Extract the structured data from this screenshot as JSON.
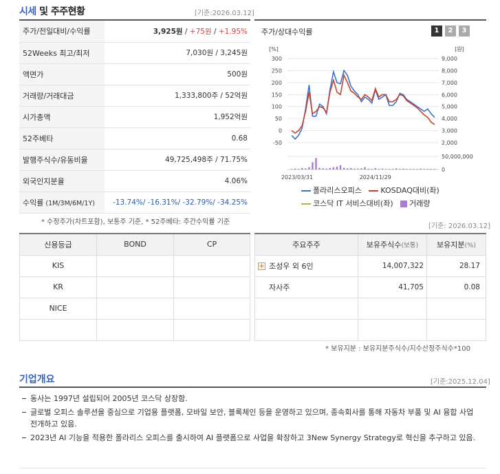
{
  "header": {
    "title_part1": "시세",
    "title_part2": " 및 주주현황",
    "date": "[기준:2026.03.12]"
  },
  "info": {
    "rows": [
      {
        "label": "주가/전일대비/수익률"
      },
      {
        "label": "52Weeks 최고/최저",
        "value": "7,030원 / 3,245원"
      },
      {
        "label": "액면가",
        "value": "500원"
      },
      {
        "label": "거래량/거래대금",
        "value": "1,333,800주 / 52억원"
      },
      {
        "label": "시가총액",
        "value": "1,952억원"
      },
      {
        "label": "52주베타",
        "value": "0.68"
      },
      {
        "label": "발행주식수/유동비율",
        "value": "49,725,498주 / 71.75%"
      },
      {
        "label": "외국인지분율",
        "value": "4.06%"
      },
      {
        "label": "수익률",
        "label_sub": "(1M/3M/6M/1Y)",
        "value": "-13.74%/ -16.31%/ -32.79%/ -34.25%"
      }
    ],
    "price": "3,925원",
    "sep": " / ",
    "change": "+75원",
    "change_pct": "+1.95%"
  },
  "note_adjusted": "* 수정주가(차트포함), 보통주 기준, * 52주베타: 주간수익률 기준",
  "chart": {
    "title": "주가/상대수익률",
    "pages": [
      "1",
      "2",
      "3"
    ],
    "left_unit": "[%]",
    "right_unit": "[원]",
    "left_ticks": [
      "300",
      "250",
      "200",
      "150",
      "100",
      "50",
      "0",
      "-50"
    ],
    "right_ticks": [
      "9,000",
      "8,000",
      "7,000",
      "6,000",
      "5,000",
      "4,000",
      "3,000",
      "2,000"
    ],
    "vol_ticks": [
      "50,000,000",
      "0"
    ],
    "x_ticks": [
      "2023/03/31",
      "2024/11/29"
    ],
    "legend": {
      "s1": "폴라리스오피스",
      "s2": "KOSDAQ대비(좌)",
      "s3": "코스닥 IT 서비스대비(좌)",
      "s4": "거래량"
    },
    "colors": {
      "s1": "#3b73c9",
      "s2": "#c8412b",
      "s3": "#9dbd3a",
      "s4": "#a77bd6"
    }
  },
  "chart_data": {
    "type": "line",
    "x_labels": [
      "2023/03/31",
      "2024/11/29"
    ],
    "left_axis_range": [
      -50,
      300
    ],
    "right_axis_range": [
      2000,
      9000
    ],
    "series": [
      {
        "name": "폴라리스오피스",
        "values": [
          -20,
          -35,
          -20,
          10,
          90,
          190,
          60,
          60,
          110,
          100,
          70,
          170,
          245,
          200,
          195,
          250,
          230,
          185,
          165,
          150,
          120,
          140,
          130,
          115,
          170,
          130,
          140,
          150,
          105,
          105,
          120,
          155,
          150,
          130,
          120,
          110,
          100,
          90,
          80,
          90,
          70,
          55
        ]
      },
      {
        "name": "KOSDAQ대비(좌)",
        "values": [
          0,
          -10,
          0,
          20,
          80,
          160,
          70,
          80,
          100,
          95,
          75,
          160,
          210,
          160,
          150,
          230,
          200,
          165,
          155,
          140,
          130,
          150,
          140,
          125,
          175,
          140,
          150,
          150,
          120,
          120,
          130,
          150,
          145,
          125,
          115,
          105,
          95,
          80,
          65,
          55,
          35,
          25
        ]
      }
    ],
    "volume_range": [
      0,
      50000000
    ],
    "volume": [
      2,
      3,
      2,
      5,
      4,
      8,
      25,
      40,
      6,
      4,
      3,
      5,
      8,
      10,
      15,
      6,
      4,
      5,
      3,
      3,
      4,
      8,
      3,
      2,
      5,
      2,
      3,
      2,
      2,
      2,
      4,
      2,
      3,
      2,
      2,
      2,
      2,
      3,
      2,
      2,
      2,
      2
    ]
  },
  "chart_date": "[기준: 2026.03.12]",
  "credit": {
    "headers": [
      "신용등급",
      "BOND",
      "CP"
    ],
    "rows": [
      [
        "KIS",
        "",
        ""
      ],
      [
        "KR",
        "",
        ""
      ],
      [
        "NICE",
        "",
        ""
      ],
      [
        "",
        "",
        ""
      ]
    ]
  },
  "holders": {
    "headers": [
      "주요주주",
      "보유주식수",
      "(보통)",
      "보유지분",
      "(%)"
    ],
    "rows": [
      {
        "name": "조성우 외 6인",
        "shares": "14,007,322",
        "pct": "28.17",
        "expand": true
      },
      {
        "name": "자사주",
        "shares": "41,705",
        "pct": "0.08",
        "expand": false
      },
      {
        "name": "",
        "shares": "",
        "pct": ""
      },
      {
        "name": "",
        "shares": "",
        "pct": ""
      }
    ],
    "note": "* 보유지분 : 보유지분주식수/지수산정주식수*100"
  },
  "overview": {
    "title": "기업개요",
    "date": "[기준:2025.12.04]",
    "items": [
      "동사는 1997년 설립되어 2005년 코스닥 상장함.",
      "글로벌 오피스 솔루션을 중심으로 기업용 플랫폼, 모바일 보안, 블록체인 등을 운영하고 있으며, 종속회사를 통해 자동차 부품 및 AI 융합 사업 전개하고 있음.",
      "2023년 AI 기능을 적용한 폴라리스 오피스를 출시하여 AI 플랫폼으로 사업을 확장하고 3New Synergy Strategy로 혁신을 추구하고 있음."
    ]
  }
}
